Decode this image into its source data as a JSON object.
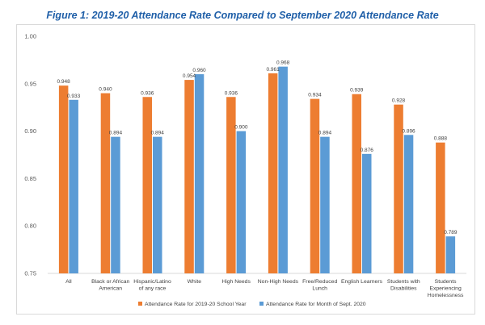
{
  "chart_data": {
    "type": "bar",
    "title": "Figure 1: 2019-20 Attendance Rate Compared to September 2020 Attendance Rate",
    "xlabel": "",
    "ylabel": "",
    "ylim": [
      0.75,
      1.0
    ],
    "yticks": [
      "0.75",
      "0.80",
      "0.85",
      "0.90",
      "0.95",
      "1.00"
    ],
    "ytick_values": [
      0.75,
      0.8,
      0.85,
      0.9,
      0.95,
      1.0
    ],
    "grid": false,
    "legend_position": "bottom",
    "categories": [
      [
        "All"
      ],
      [
        "Black or African",
        "American"
      ],
      [
        "Hispanic/Latino",
        "of any race"
      ],
      [
        "White"
      ],
      [
        "High Needs"
      ],
      [
        "Non-High Needs"
      ],
      [
        "Free/Reduced",
        "Lunch"
      ],
      [
        "English Learners"
      ],
      [
        "Students with",
        "Disabilities"
      ],
      [
        "Students",
        "Experiencing",
        "Homelessness"
      ]
    ],
    "series": [
      {
        "name": "Attendance Rate for 2019-20 School Year",
        "color": "#ed7d31",
        "values": [
          0.948,
          0.94,
          0.936,
          0.954,
          0.936,
          0.961,
          0.934,
          0.939,
          0.928,
          0.888
        ],
        "labels": [
          "0.948",
          "0.940",
          "0.936",
          "0.954",
          "0.936",
          "0.961",
          "0.934",
          "0.939",
          "0.928",
          "0.888"
        ]
      },
      {
        "name": "Attendance Rate for Month of Sept. 2020",
        "color": "#5b9bd5",
        "values": [
          0.933,
          0.894,
          0.894,
          0.96,
          0.9,
          0.968,
          0.894,
          0.876,
          0.896,
          0.789
        ],
        "labels": [
          "0.933",
          "0.894",
          "0.894",
          "0.960",
          "0.900",
          "0.968",
          "0.894",
          "0.876",
          "0.896",
          "0.789"
        ]
      }
    ]
  }
}
